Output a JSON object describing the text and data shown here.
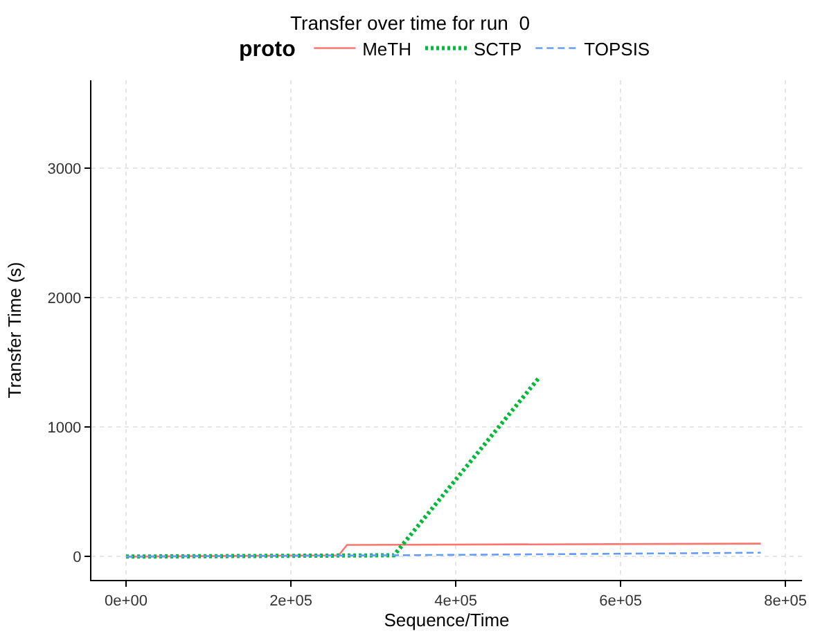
{
  "chart_data": {
    "type": "line",
    "title": "Transfer over time for run  0",
    "xlabel": "Sequence/Time",
    "ylabel": "Transfer Time (s)",
    "legend_title": "proto",
    "series": [
      {
        "name": "MeTH",
        "color": "#f8766d",
        "line_style": "solid",
        "x": [
          0,
          258000,
          268000,
          770000
        ],
        "values": [
          0,
          10,
          90,
          100
        ]
      },
      {
        "name": "SCTP",
        "color": "#00ba38",
        "line_style": "dotted",
        "x": [
          0,
          325000,
          502000
        ],
        "values": [
          0,
          10,
          1390
        ]
      },
      {
        "name": "TOPSIS",
        "color": "#619cff",
        "line_style": "dashed",
        "x": [
          0,
          325000,
          770000
        ],
        "values": [
          0,
          10,
          30
        ]
      }
    ],
    "xlim": [
      -42000,
      820000
    ],
    "xticks": [
      {
        "value": 0,
        "label": "0e+00"
      },
      {
        "value": 200000,
        "label": "2e+05"
      },
      {
        "value": 400000,
        "label": "4e+05"
      },
      {
        "value": 600000,
        "label": "6e+05"
      },
      {
        "value": 800000,
        "label": "8e+05"
      }
    ],
    "ylim": [
      -180,
      3680
    ],
    "yticks": [
      0,
      1000,
      2000,
      3000
    ],
    "grid": true,
    "legend": "top"
  }
}
